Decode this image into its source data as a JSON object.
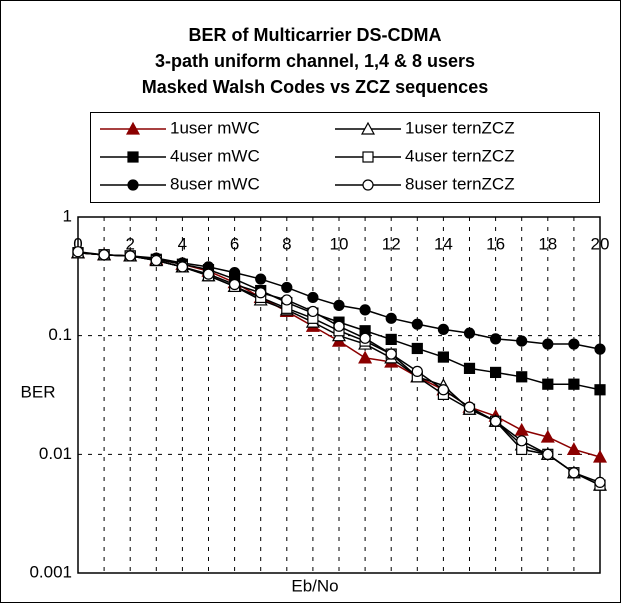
{
  "chart_data": {
    "type": "line",
    "title": [
      "BER of Multicarrier DS-CDMA",
      "3-path uniform channel, 1,4 & 8 users",
      "Masked Walsh Codes vs ZCZ sequences"
    ],
    "x_label": "Eb/No",
    "y_label": "BER",
    "x": [
      0,
      1,
      2,
      3,
      4,
      5,
      6,
      7,
      8,
      9,
      10,
      11,
      12,
      13,
      14,
      15,
      16,
      17,
      18,
      19,
      20
    ],
    "xlim": [
      0,
      20
    ],
    "xticks": [
      0,
      2,
      4,
      6,
      8,
      10,
      12,
      14,
      16,
      18,
      20
    ],
    "ylim": [
      0.001,
      1
    ],
    "yticks": [
      1,
      0.1,
      0.01,
      0.001
    ],
    "log_y": true,
    "grid": true,
    "series": [
      {
        "name": "1user mWC",
        "color": "#8b0000",
        "marker": "triangle",
        "filled": true,
        "values": [
          0.5,
          0.48,
          0.47,
          0.44,
          0.4,
          0.35,
          0.28,
          0.21,
          0.16,
          0.12,
          0.09,
          0.065,
          0.06,
          0.045,
          0.035,
          0.025,
          0.021,
          0.016,
          0.014,
          0.011,
          0.0095
        ]
      },
      {
        "name": "4user mWC",
        "color": "#000000",
        "marker": "square",
        "filled": true,
        "values": [
          0.5,
          0.48,
          0.47,
          0.44,
          0.4,
          0.36,
          0.3,
          0.24,
          0.19,
          0.155,
          0.13,
          0.11,
          0.093,
          0.078,
          0.066,
          0.053,
          0.049,
          0.045,
          0.039,
          0.039,
          0.035
        ]
      },
      {
        "name": "8user mWC",
        "color": "#000000",
        "marker": "circle",
        "filled": true,
        "values": [
          0.5,
          0.48,
          0.47,
          0.45,
          0.41,
          0.38,
          0.34,
          0.3,
          0.255,
          0.21,
          0.18,
          0.165,
          0.14,
          0.125,
          0.113,
          0.105,
          0.094,
          0.09,
          0.085,
          0.085,
          0.077
        ]
      },
      {
        "name": "1user ternZCZ",
        "color": "#000000",
        "marker": "triangle",
        "filled": false,
        "values": [
          0.5,
          0.48,
          0.47,
          0.43,
          0.38,
          0.32,
          0.26,
          0.2,
          0.165,
          0.13,
          0.1,
          0.085,
          0.065,
          0.045,
          0.038,
          0.024,
          0.019,
          0.012,
          0.01,
          0.007,
          0.0055
        ]
      },
      {
        "name": "4user ternZCZ",
        "color": "#000000",
        "marker": "square",
        "filled": false,
        "values": [
          0.5,
          0.48,
          0.47,
          0.43,
          0.38,
          0.32,
          0.26,
          0.21,
          0.17,
          0.14,
          0.11,
          0.09,
          0.07,
          0.045,
          0.032,
          0.024,
          0.019,
          0.011,
          0.01,
          0.007,
          0.0055
        ]
      },
      {
        "name": "8user ternZCZ",
        "color": "#000000",
        "marker": "circle",
        "filled": false,
        "values": [
          0.51,
          0.48,
          0.47,
          0.43,
          0.38,
          0.33,
          0.27,
          0.23,
          0.2,
          0.16,
          0.12,
          0.095,
          0.07,
          0.05,
          0.035,
          0.025,
          0.019,
          0.013,
          0.01,
          0.007,
          0.0058
        ]
      }
    ]
  }
}
